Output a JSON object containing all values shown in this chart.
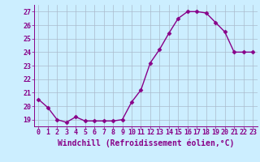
{
  "x": [
    0,
    1,
    2,
    3,
    4,
    5,
    6,
    7,
    8,
    9,
    10,
    11,
    12,
    13,
    14,
    15,
    16,
    17,
    18,
    19,
    20,
    21,
    22,
    23
  ],
  "y": [
    20.5,
    19.9,
    19.0,
    18.8,
    19.2,
    18.9,
    18.9,
    18.9,
    18.9,
    19.0,
    20.3,
    21.2,
    23.2,
    24.2,
    25.4,
    26.5,
    27.0,
    27.0,
    26.9,
    26.2,
    25.5,
    24.0,
    24.0,
    24.0
  ],
  "line_color": "#880088",
  "marker": "D",
  "marker_size": 2.5,
  "bg_color": "#cceeff",
  "grid_color": "#aabbcc",
  "xlabel": "Windchill (Refroidissement éolien,°C)",
  "ylim": [
    18.5,
    27.5
  ],
  "xlim": [
    -0.5,
    23.5
  ],
  "yticks": [
    19,
    20,
    21,
    22,
    23,
    24,
    25,
    26,
    27
  ],
  "xticks": [
    0,
    1,
    2,
    3,
    4,
    5,
    6,
    7,
    8,
    9,
    10,
    11,
    12,
    13,
    14,
    15,
    16,
    17,
    18,
    19,
    20,
    21,
    22,
    23
  ],
  "tick_fontsize": 6,
  "xlabel_fontsize": 7,
  "line_width": 1.0
}
